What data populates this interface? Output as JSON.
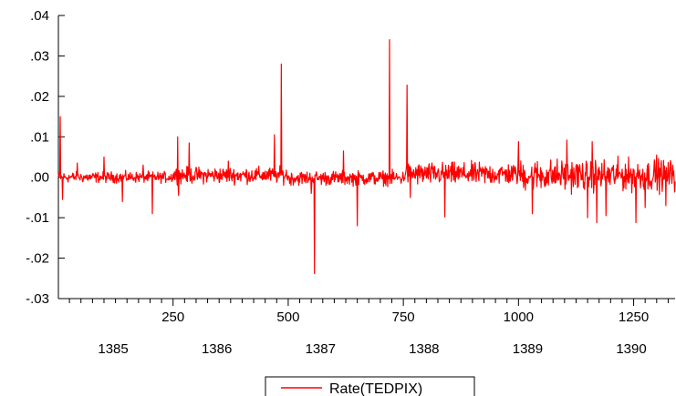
{
  "chart_data": {
    "type": "line",
    "title": "",
    "xlabel": "",
    "ylabel": "",
    "xlim": [
      1,
      1340
    ],
    "ylim": [
      -0.03,
      0.04
    ],
    "y_ticks": [
      -0.03,
      -0.02,
      -0.01,
      0.0,
      0.01,
      0.02,
      0.03,
      0.04
    ],
    "y_tick_labels": [
      "-.03",
      "-.02",
      "-.01",
      ".00",
      ".01",
      ".02",
      ".03",
      ".04"
    ],
    "x_ticks": [
      250,
      500,
      750,
      1000,
      1250
    ],
    "x_tick_labels": [
      "250",
      "500",
      "750",
      "1000",
      "1250"
    ],
    "year_labels": [
      {
        "x": 120,
        "label": "1385"
      },
      {
        "x": 345,
        "label": "1386"
      },
      {
        "x": 570,
        "label": "1387"
      },
      {
        "x": 795,
        "label": "1388"
      },
      {
        "x": 1020,
        "label": "1389"
      },
      {
        "x": 1245,
        "label": "1390"
      }
    ],
    "grid": false,
    "legend_position": "bottom-center",
    "series": [
      {
        "name": "Rate(TEDPIX)",
        "color": "#ff0000",
        "noise_segments": [
          {
            "x_start": 1,
            "x_end": 250,
            "amplitude": 0.0012,
            "offset": 0.0
          },
          {
            "x_start": 250,
            "x_end": 500,
            "amplitude": 0.0018,
            "offset": 0.0005
          },
          {
            "x_start": 500,
            "x_end": 750,
            "amplitude": 0.0016,
            "offset": -0.0002
          },
          {
            "x_start": 750,
            "x_end": 1000,
            "amplitude": 0.0025,
            "offset": 0.0008
          },
          {
            "x_start": 1000,
            "x_end": 1340,
            "amplitude": 0.0035,
            "offset": 0.0005
          }
        ],
        "spikes": [
          {
            "x": 5,
            "y": 0.015
          },
          {
            "x": 10,
            "y": -0.0055
          },
          {
            "x": 42,
            "y": 0.0035
          },
          {
            "x": 100,
            "y": 0.005
          },
          {
            "x": 140,
            "y": -0.006
          },
          {
            "x": 185,
            "y": 0.003
          },
          {
            "x": 205,
            "y": -0.009
          },
          {
            "x": 260,
            "y": 0.01
          },
          {
            "x": 262,
            "y": -0.0045
          },
          {
            "x": 285,
            "y": 0.0085
          },
          {
            "x": 370,
            "y": 0.004
          },
          {
            "x": 470,
            "y": 0.0105
          },
          {
            "x": 485,
            "y": 0.028
          },
          {
            "x": 550,
            "y": -0.004
          },
          {
            "x": 557,
            "y": -0.0238
          },
          {
            "x": 620,
            "y": 0.0065
          },
          {
            "x": 650,
            "y": -0.012
          },
          {
            "x": 720,
            "y": 0.034
          },
          {
            "x": 758,
            "y": 0.0228
          },
          {
            "x": 765,
            "y": -0.005
          },
          {
            "x": 840,
            "y": -0.0098
          },
          {
            "x": 1000,
            "y": 0.0088
          },
          {
            "x": 1030,
            "y": -0.009
          },
          {
            "x": 1105,
            "y": 0.0092
          },
          {
            "x": 1150,
            "y": -0.01
          },
          {
            "x": 1160,
            "y": 0.0088
          },
          {
            "x": 1170,
            "y": -0.0112
          },
          {
            "x": 1190,
            "y": -0.0095
          },
          {
            "x": 1255,
            "y": -0.0112
          },
          {
            "x": 1275,
            "y": -0.0075
          },
          {
            "x": 1300,
            "y": 0.0055
          },
          {
            "x": 1320,
            "y": -0.007
          },
          {
            "x": 1335,
            "y": 0.003
          }
        ]
      }
    ]
  }
}
